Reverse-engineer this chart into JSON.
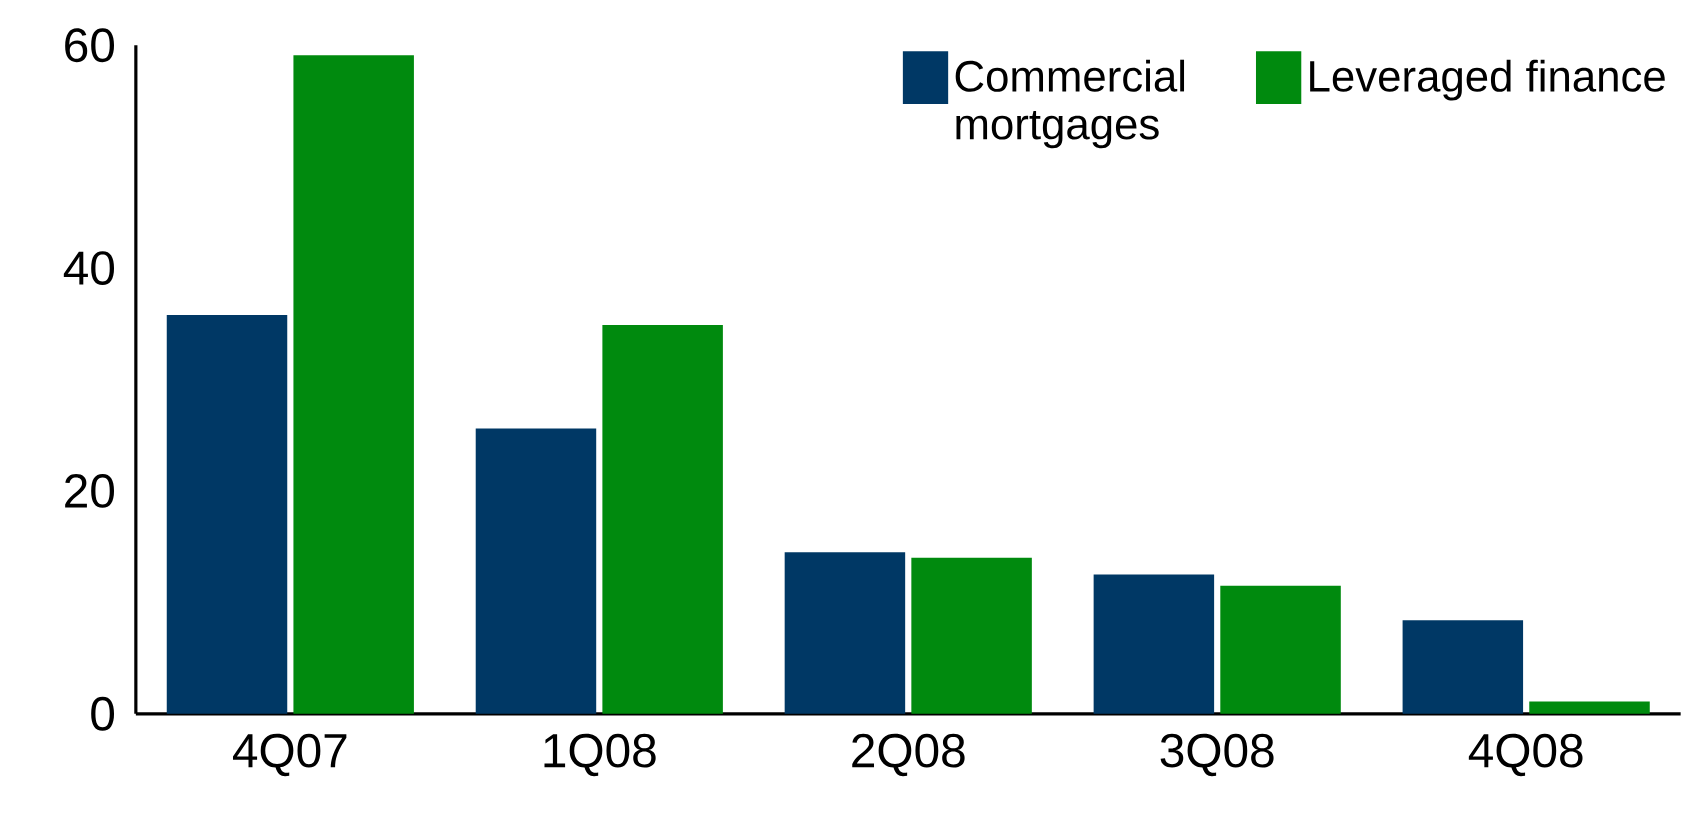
{
  "chart_data": {
    "type": "bar",
    "categories": [
      "4Q07",
      "1Q08",
      "2Q08",
      "3Q08",
      "4Q08"
    ],
    "series": [
      {
        "name": "Commercial mortgages",
        "color": "#003865",
        "values": [
          35.8,
          25.6,
          14.5,
          12.5,
          8.4
        ]
      },
      {
        "name": "Leveraged finance",
        "color": "#008a0e",
        "values": [
          59.1,
          34.9,
          14.0,
          11.5,
          1.1
        ]
      }
    ],
    "ylim": [
      0,
      60
    ],
    "yticks": [
      0,
      20,
      40,
      60
    ],
    "grid": false,
    "legend": "top right"
  }
}
